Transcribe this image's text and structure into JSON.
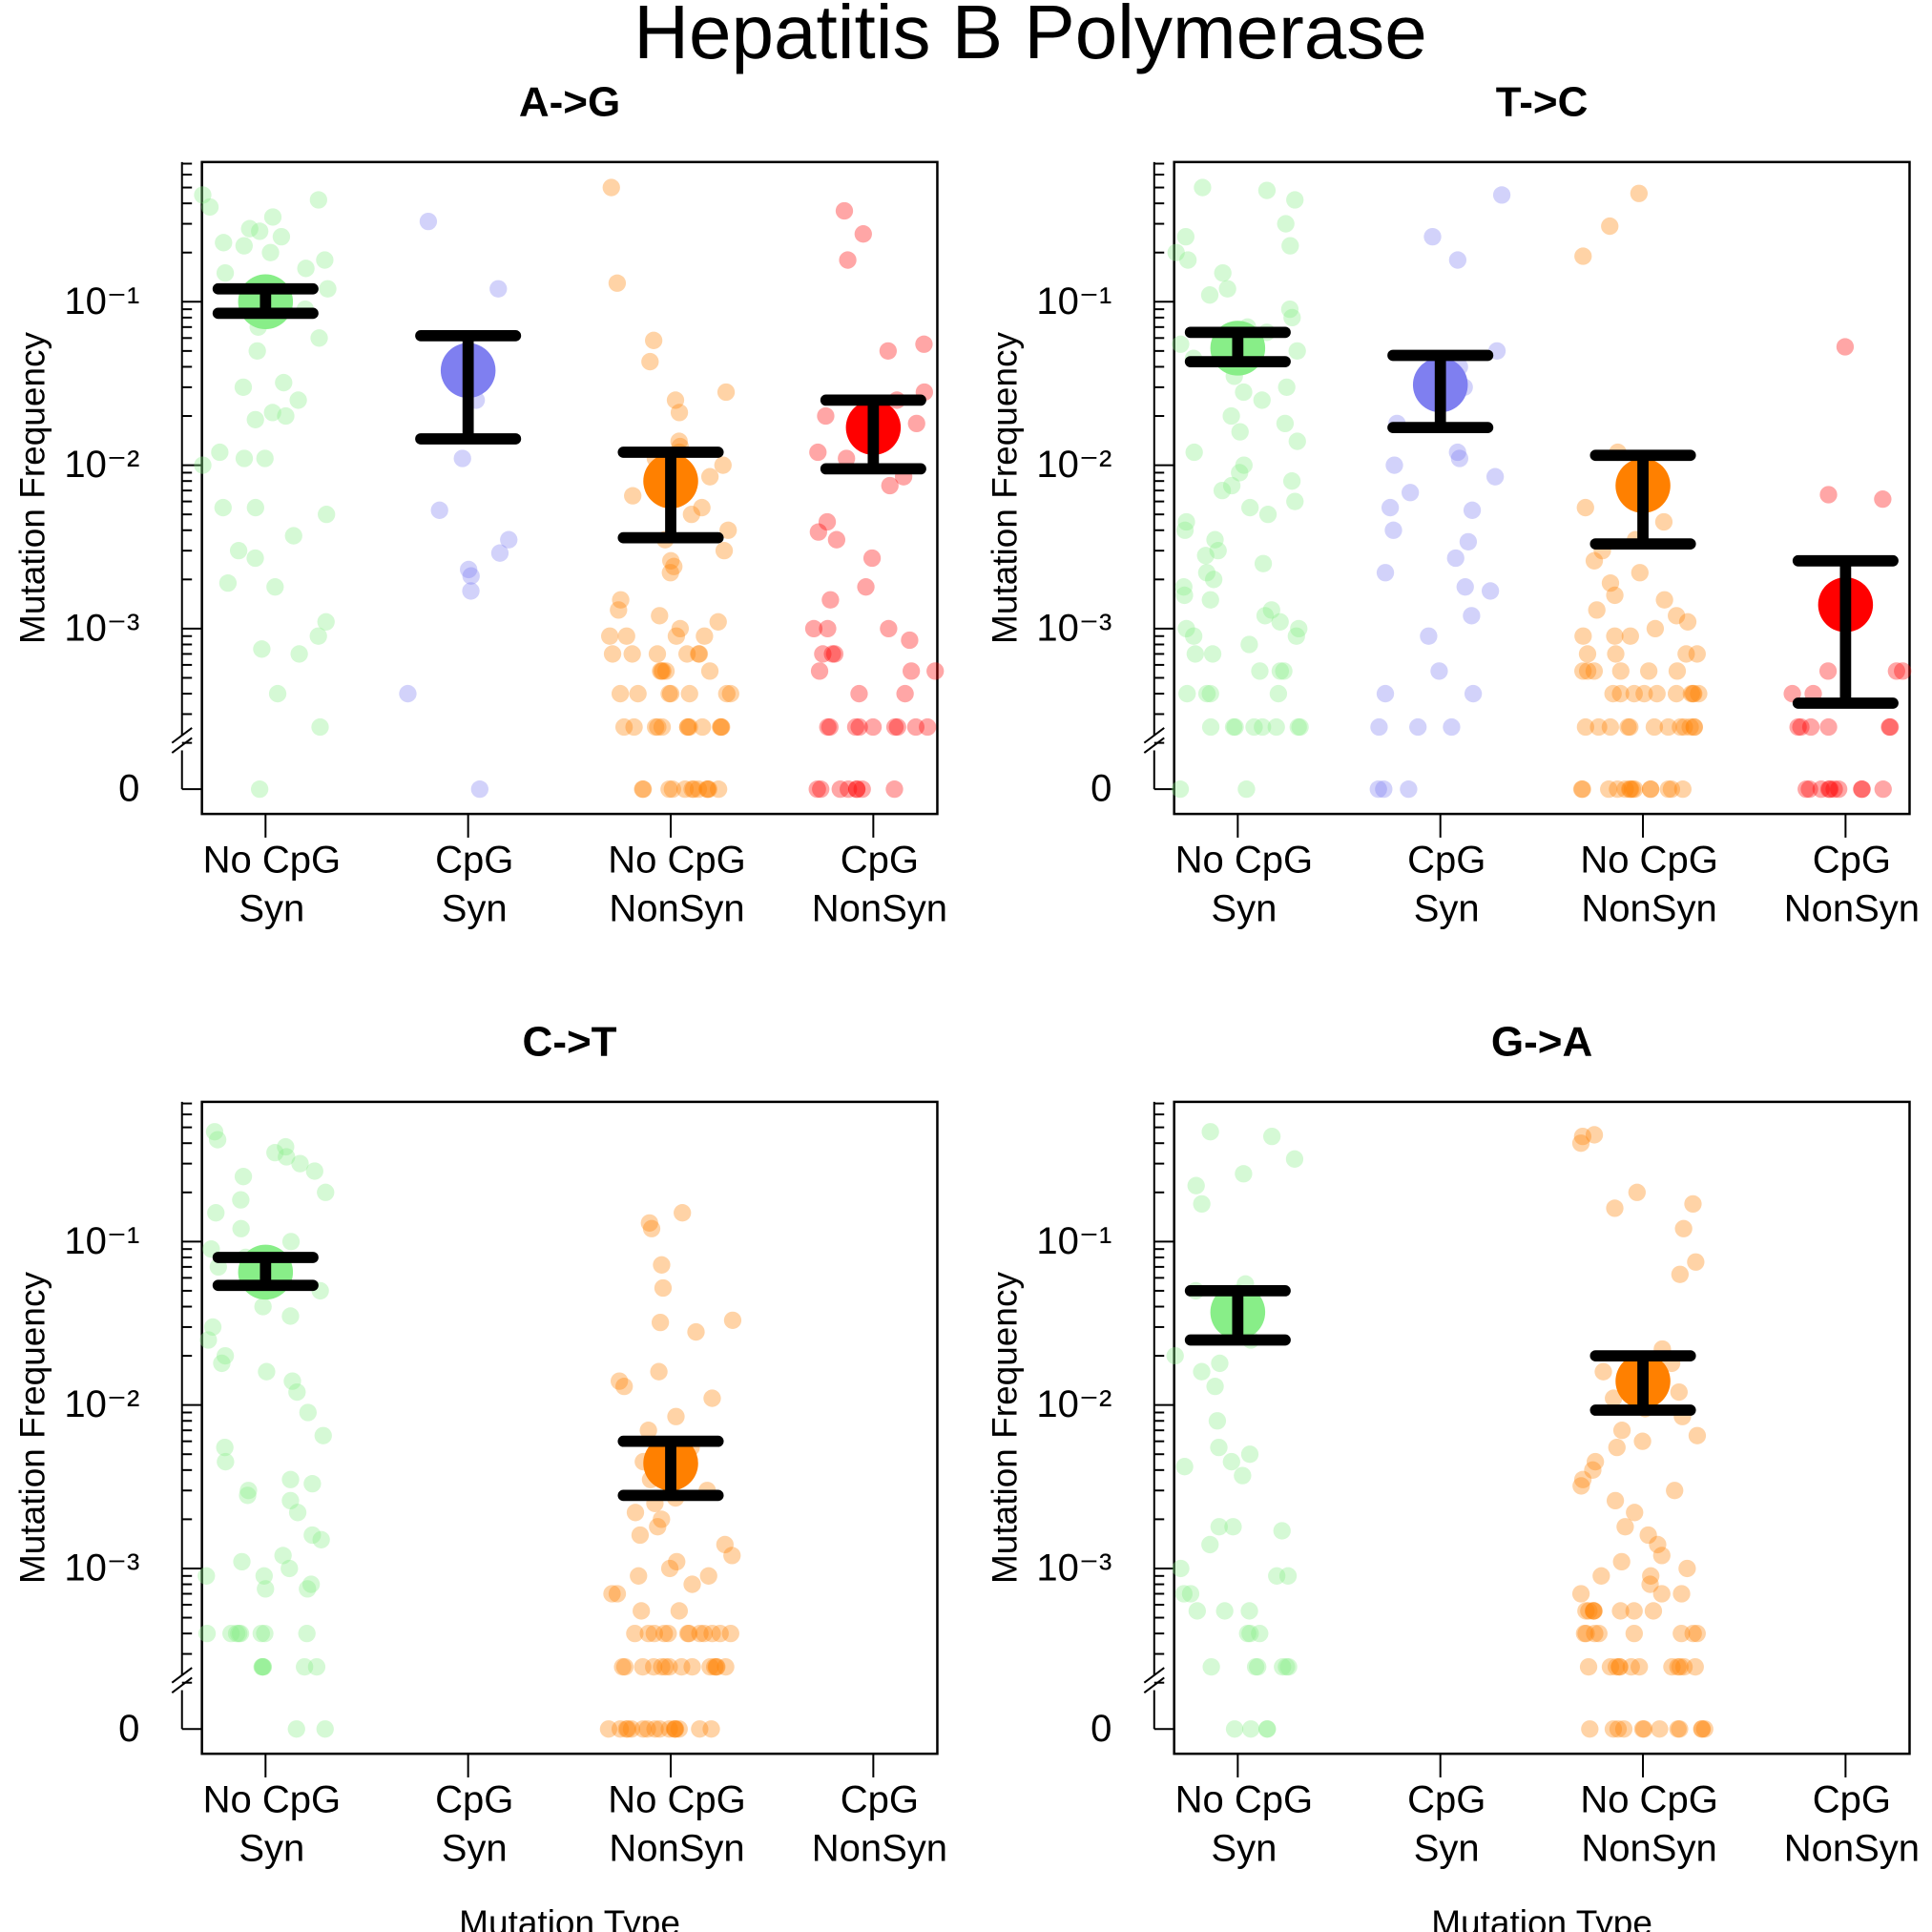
{
  "title": "Hepatitis B Polymerase",
  "chart_data": [
    {
      "type": "strip",
      "title": "A->G",
      "ylabel": "Mutation Frequency",
      "log_scale": true,
      "categories": [
        [
          "No CpG",
          "Syn"
        ],
        [
          "CpG",
          "Syn"
        ],
        [
          "No CpG",
          "NonSyn"
        ],
        [
          "CpG",
          "NonSyn"
        ]
      ],
      "ylim": [
        0.0002,
        0.716
      ],
      "yticks": [
        {
          "value": 0.1,
          "label": "10⁻¹"
        },
        {
          "value": 0.01,
          "label": "10⁻²"
        },
        {
          "value": 0.001,
          "label": "10⁻³"
        },
        0
      ],
      "groups": [
        {
          "color": "#88ee88",
          "mean": 0.1,
          "lower": 0.085,
          "upper": 0.12,
          "values": [
            0.45,
            0.42,
            0.38,
            0.33,
            0.28,
            0.27,
            0.25,
            0.23,
            0.22,
            0.2,
            0.18,
            0.16,
            0.15,
            0.12,
            0.09,
            0.07,
            0.06,
            0.05,
            0.032,
            0.03,
            0.025,
            0.021,
            0.02,
            0.019,
            0.012,
            0.011,
            0.011,
            0.01,
            0.0055,
            0.0055,
            0.005,
            0.0037,
            0.003,
            0.0027,
            0.0019,
            0.0018,
            0.0011,
            0.0009,
            0.00075,
            0.0007,
            0.0004,
            0.00025,
            0
          ]
        },
        {
          "color": "#7f7ff0",
          "mean": 0.038,
          "lower": 0.0145,
          "upper": 0.062,
          "values": [
            0.31,
            0.12,
            0.025,
            0.011,
            0.0053,
            0.0035,
            0.0029,
            0.0023,
            0.0021,
            0.0017,
            0.0004,
            0
          ]
        },
        {
          "color": "#ff8000",
          "mean": 0.008,
          "lower": 0.0036,
          "upper": 0.012,
          "values": [
            0.5,
            0.13,
            0.058,
            0.043,
            0.028,
            0.025,
            0.021,
            0.014,
            0.013,
            0.012,
            0.011,
            0.01,
            0.0085,
            0.0065,
            0.0055,
            0.005,
            0.004,
            0.0035,
            0.003,
            0.0026,
            0.0024,
            0.0022,
            0.0015,
            0.0013,
            0.0012,
            0.0011,
            0.001,
            0.0009,
            0.0009,
            0.0009,
            0.0009,
            0.0007,
            0.0007,
            0.0007,
            0.0007,
            0.0007,
            0.0007,
            0.00055,
            0.00055,
            0.00055,
            0.00055,
            0.00055,
            0.0004,
            0.0004,
            0.0004,
            0.0004,
            0.0004,
            0.0004,
            0.0004,
            0.00025,
            0.00025,
            0.00025,
            0.00025,
            0.00025,
            0.00025,
            0.00025,
            0.00025,
            0.00025,
            0.00025,
            0.00025,
            0.00025,
            0,
            0,
            0,
            0,
            0,
            0,
            0,
            0,
            0,
            0,
            0,
            0
          ]
        },
        {
          "color": "#ff0000",
          "mean": 0.017,
          "lower": 0.0095,
          "upper": 0.025,
          "values": [
            0.36,
            0.26,
            0.18,
            0.055,
            0.05,
            0.028,
            0.025,
            0.02,
            0.018,
            0.012,
            0.011,
            0.0085,
            0.0075,
            0.0045,
            0.0039,
            0.0035,
            0.0027,
            0.0018,
            0.0015,
            0.001,
            0.001,
            0.001,
            0.00085,
            0.0007,
            0.0007,
            0.0007,
            0.00055,
            0.00055,
            0.00055,
            0.0004,
            0.0004,
            0.00025,
            0.00025,
            0.00025,
            0.00025,
            0.00025,
            0.00025,
            0.00025,
            0.00025,
            0.00025,
            0,
            0,
            0,
            0,
            0,
            0,
            0,
            0
          ]
        }
      ]
    },
    {
      "type": "strip",
      "title": "T->C",
      "ylabel": "Mutation Frequency",
      "log_scale": true,
      "categories": [
        [
          "No CpG",
          "Syn"
        ],
        [
          "CpG",
          "Syn"
        ],
        [
          "No CpG",
          "NonSyn"
        ],
        [
          "CpG",
          "NonSyn"
        ]
      ],
      "ylim": [
        0.0002,
        0.716
      ],
      "yticks": [
        {
          "value": 0.1,
          "label": "10⁻¹"
        },
        {
          "value": 0.01,
          "label": "10⁻²"
        },
        {
          "value": 0.001,
          "label": "10⁻³"
        },
        0
      ],
      "groups": [
        {
          "color": "#88ee88",
          "mean": 0.052,
          "lower": 0.043,
          "upper": 0.065,
          "values": [
            0.5,
            0.48,
            0.42,
            0.3,
            0.25,
            0.22,
            0.2,
            0.18,
            0.15,
            0.12,
            0.11,
            0.09,
            0.08,
            0.07,
            0.065,
            0.055,
            0.05,
            0.045,
            0.04,
            0.035,
            0.03,
            0.028,
            0.025,
            0.02,
            0.018,
            0.016,
            0.014,
            0.012,
            0.01,
            0.009,
            0.008,
            0.0075,
            0.007,
            0.006,
            0.0055,
            0.005,
            0.0045,
            0.004,
            0.0035,
            0.003,
            0.0028,
            0.0025,
            0.0022,
            0.002,
            0.0018,
            0.0016,
            0.0015,
            0.0013,
            0.0012,
            0.0011,
            0.001,
            0.001,
            0.0009,
            0.0009,
            0.0008,
            0.0007,
            0.0007,
            0.00055,
            0.00055,
            0.00055,
            0.0004,
            0.0004,
            0.0004,
            0.0004,
            0.00025,
            0.00025,
            0.00025,
            0.00025,
            0.00025,
            0.00025,
            0.00025,
            0.00025,
            0,
            0
          ]
        },
        {
          "color": "#7f7ff0",
          "mean": 0.031,
          "lower": 0.017,
          "upper": 0.047,
          "values": [
            0.45,
            0.25,
            0.18,
            0.05,
            0.04,
            0.03,
            0.018,
            0.012,
            0.011,
            0.01,
            0.0085,
            0.0068,
            0.0055,
            0.0053,
            0.004,
            0.0034,
            0.0027,
            0.0022,
            0.0018,
            0.0017,
            0.0012,
            0.0009,
            0.00055,
            0.0004,
            0.0004,
            0.00025,
            0.00025,
            0.00025,
            0,
            0,
            0
          ]
        },
        {
          "color": "#ff8000",
          "mean": 0.0075,
          "lower": 0.0033,
          "upper": 0.0115,
          "values": [
            0.46,
            0.29,
            0.19,
            0.012,
            0.0085,
            0.007,
            0.0055,
            0.0045,
            0.0035,
            0.003,
            0.0026,
            0.0022,
            0.0019,
            0.0016,
            0.0015,
            0.0013,
            0.0012,
            0.0011,
            0.001,
            0.0009,
            0.0009,
            0.0009,
            0.0007,
            0.0007,
            0.0007,
            0.0007,
            0.00055,
            0.00055,
            0.00055,
            0.00055,
            0.00055,
            0.00055,
            0.0004,
            0.0004,
            0.0004,
            0.0004,
            0.0004,
            0.0004,
            0.0004,
            0.0004,
            0.0004,
            0.0004,
            0.00025,
            0.00025,
            0.00025,
            0.00025,
            0.00025,
            0.00025,
            0.00025,
            0.00025,
            0.00025,
            0.00025,
            0.00025,
            0.00025,
            0,
            0,
            0,
            0,
            0,
            0,
            0,
            0,
            0,
            0,
            0,
            0,
            0,
            0
          ]
        },
        {
          "color": "#ff0000",
          "mean": 0.0014,
          "lower": 0.00035,
          "upper": 0.0026,
          "values": [
            0.053,
            0.0066,
            0.0062,
            0.00055,
            0.00055,
            0.00055,
            0.0004,
            0.0004,
            0.00025,
            0.00025,
            0.00025,
            0.00025,
            0.00025,
            0.00025,
            0,
            0,
            0,
            0,
            0,
            0,
            0,
            0,
            0,
            0
          ]
        }
      ]
    },
    {
      "type": "strip",
      "title": "C->T",
      "ylabel": "Mutation Frequency",
      "xlabel": "Mutation Type",
      "log_scale": true,
      "categories": [
        [
          "No CpG",
          "Syn"
        ],
        [
          "CpG",
          "Syn"
        ],
        [
          "No CpG",
          "NonSyn"
        ],
        [
          "CpG",
          "NonSyn"
        ]
      ],
      "ylim": [
        0.0002,
        0.716
      ],
      "yticks": [
        {
          "value": 0.1,
          "label": "10⁻¹"
        },
        {
          "value": 0.01,
          "label": "10⁻²"
        },
        {
          "value": 0.001,
          "label": "10⁻³"
        },
        0
      ],
      "groups": [
        {
          "color": "#88ee88",
          "mean": 0.065,
          "lower": 0.054,
          "upper": 0.08,
          "values": [
            0.47,
            0.42,
            0.38,
            0.35,
            0.33,
            0.3,
            0.27,
            0.25,
            0.2,
            0.18,
            0.15,
            0.12,
            0.1,
            0.09,
            0.08,
            0.07,
            0.06,
            0.05,
            0.04,
            0.035,
            0.03,
            0.025,
            0.02,
            0.018,
            0.016,
            0.014,
            0.012,
            0.009,
            0.0065,
            0.0055,
            0.0045,
            0.0035,
            0.0033,
            0.003,
            0.0028,
            0.0026,
            0.0022,
            0.0016,
            0.0015,
            0.0012,
            0.0011,
            0.001,
            0.0009,
            0.0009,
            0.0008,
            0.00075,
            0.00075,
            0.0004,
            0.0004,
            0.0004,
            0.0004,
            0.0004,
            0.0004,
            0.0004,
            0.0004,
            0.00025,
            0.00025,
            0.00025,
            0.00025,
            0.00025,
            0.00025,
            0,
            0
          ]
        },
        {
          "color": "#7f7ff0",
          "mean": null,
          "lower": null,
          "upper": null,
          "values": []
        },
        {
          "color": "#ff8000",
          "mean": 0.0044,
          "lower": 0.0028,
          "upper": 0.006,
          "values": [
            0.15,
            0.13,
            0.12,
            0.072,
            0.052,
            0.033,
            0.032,
            0.028,
            0.016,
            0.014,
            0.013,
            0.011,
            0.0085,
            0.007,
            0.0055,
            0.0045,
            0.0035,
            0.003,
            0.0027,
            0.0025,
            0.0022,
            0.002,
            0.0018,
            0.0016,
            0.0014,
            0.0012,
            0.0011,
            0.001,
            0.0009,
            0.0009,
            0.0008,
            0.0007,
            0.0007,
            0.00055,
            0.00055,
            0.0004,
            0.0004,
            0.0004,
            0.0004,
            0.0004,
            0.0004,
            0.0004,
            0.0004,
            0.0004,
            0.0004,
            0.0004,
            0.0004,
            0.00025,
            0.00025,
            0.00025,
            0.00025,
            0.00025,
            0.00025,
            0.00025,
            0.00025,
            0.00025,
            0.00025,
            0.00025,
            0.00025,
            0.00025,
            0.00025,
            0,
            0,
            0,
            0,
            0,
            0,
            0,
            0,
            0,
            0,
            0,
            0,
            0,
            0,
            0,
            0
          ]
        },
        {
          "color": "#ff0000",
          "mean": null,
          "lower": null,
          "upper": null,
          "values": []
        }
      ]
    },
    {
      "type": "strip",
      "title": "G->A",
      "ylabel": "Mutation Frequency",
      "xlabel": "Mutation Type",
      "log_scale": true,
      "categories": [
        [
          "No CpG",
          "Syn"
        ],
        [
          "CpG",
          "Syn"
        ],
        [
          "No CpG",
          "NonSyn"
        ],
        [
          "CpG",
          "NonSyn"
        ]
      ],
      "ylim": [
        0.0002,
        0.716
      ],
      "yticks": [
        {
          "value": 0.1,
          "label": "10⁻¹"
        },
        {
          "value": 0.01,
          "label": "10⁻²"
        },
        {
          "value": 0.001,
          "label": "10⁻³"
        },
        0
      ],
      "groups": [
        {
          "color": "#88ee88",
          "mean": 0.037,
          "lower": 0.025,
          "upper": 0.05,
          "values": [
            0.47,
            0.44,
            0.32,
            0.26,
            0.22,
            0.17,
            0.055,
            0.05,
            0.038,
            0.03,
            0.025,
            0.02,
            0.018,
            0.016,
            0.013,
            0.008,
            0.0055,
            0.005,
            0.0045,
            0.0042,
            0.0037,
            0.0018,
            0.0018,
            0.0017,
            0.0014,
            0.001,
            0.0009,
            0.0009,
            0.0007,
            0.0007,
            0.00055,
            0.00055,
            0.00055,
            0.0004,
            0.0004,
            0.0004,
            0.00025,
            0.00025,
            0.00025,
            0.00025,
            0.00025,
            0.00025,
            0,
            0,
            0,
            0
          ]
        },
        {
          "color": "#7f7ff0",
          "mean": null,
          "lower": null,
          "upper": null,
          "values": []
        },
        {
          "color": "#ff8000",
          "mean": 0.014,
          "lower": 0.0093,
          "upper": 0.02,
          "values": [
            0.45,
            0.44,
            0.4,
            0.2,
            0.17,
            0.16,
            0.12,
            0.075,
            0.063,
            0.022,
            0.018,
            0.016,
            0.012,
            0.011,
            0.0095,
            0.0085,
            0.007,
            0.0065,
            0.006,
            0.0055,
            0.0045,
            0.004,
            0.0035,
            0.0032,
            0.003,
            0.0026,
            0.0022,
            0.0018,
            0.0016,
            0.0014,
            0.0012,
            0.0011,
            0.001,
            0.0009,
            0.0009,
            0.0008,
            0.0007,
            0.0007,
            0.0007,
            0.00055,
            0.00055,
            0.00055,
            0.00055,
            0.00055,
            0.00055,
            0.00055,
            0.00055,
            0.0004,
            0.0004,
            0.0004,
            0.0004,
            0.0004,
            0.0004,
            0.0004,
            0.0004,
            0.00025,
            0.00025,
            0.00025,
            0.00025,
            0.00025,
            0.00025,
            0.00025,
            0.00025,
            0.00025,
            0.00025,
            0.00025,
            0.00025,
            0,
            0,
            0,
            0,
            0,
            0,
            0,
            0,
            0,
            0,
            0,
            0
          ]
        },
        {
          "color": "#ff0000",
          "mean": null,
          "lower": null,
          "upper": null,
          "values": []
        }
      ]
    }
  ]
}
